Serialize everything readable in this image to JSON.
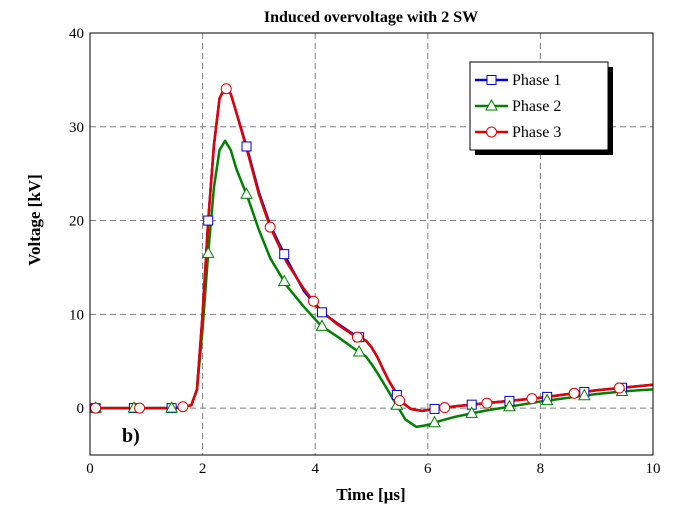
{
  "chart_data": {
    "type": "line",
    "title": "Induced overvoltage with 2 SW",
    "xlabel": "Time [µs]",
    "ylabel": "Voltage [kV]",
    "xlim": [
      0,
      10
    ],
    "ylim": [
      -5,
      40
    ],
    "xticks": [
      0,
      2,
      4,
      6,
      8,
      10
    ],
    "yticks": [
      0,
      10,
      20,
      30,
      40
    ],
    "grid": true,
    "legend_position": "top-right",
    "annotation": "b)",
    "series": [
      {
        "name": "Phase 1",
        "color": "#0000d0",
        "marker": "square",
        "x": [
          0,
          0.5,
          1.0,
          1.5,
          1.8,
          1.9,
          2.0,
          2.1,
          2.2,
          2.3,
          2.4,
          2.5,
          2.6,
          2.8,
          3.0,
          3.2,
          3.5,
          3.8,
          4.1,
          4.4,
          4.7,
          4.9,
          5.0,
          5.1,
          5.2,
          5.3,
          5.4,
          5.5,
          5.7,
          5.9,
          6.1,
          6.5,
          7.0,
          7.5,
          8.0,
          8.5,
          9.0,
          9.5,
          10.0
        ],
        "y": [
          0,
          0,
          0,
          0,
          0.3,
          2,
          10,
          20,
          28,
          33,
          34.3,
          33.5,
          31.5,
          27.5,
          23,
          19.5,
          15.8,
          12.5,
          10.3,
          9,
          7.8,
          7.2,
          6.5,
          5.5,
          4.2,
          3,
          2,
          0.8,
          -0.1,
          -0.3,
          -0.1,
          0.2,
          0.5,
          0.8,
          1.1,
          1.5,
          1.9,
          2.2,
          2.5
        ],
        "marker_x": [
          0.1,
          0.78,
          1.45,
          2.1,
          2.78,
          3.45,
          4.12,
          4.78,
          5.45,
          6.12,
          6.78,
          7.45,
          8.12,
          8.78,
          9.45
        ]
      },
      {
        "name": "Phase 2",
        "color": "#008000",
        "marker": "triangle",
        "x": [
          0,
          0.5,
          1.0,
          1.5,
          1.8,
          1.9,
          2.0,
          2.1,
          2.2,
          2.3,
          2.4,
          2.5,
          2.6,
          2.8,
          3.0,
          3.2,
          3.5,
          3.8,
          4.1,
          4.4,
          4.7,
          4.9,
          5.0,
          5.1,
          5.2,
          5.3,
          5.4,
          5.5,
          5.6,
          5.8,
          6.0,
          6.2,
          6.5,
          7.0,
          7.5,
          8.0,
          8.5,
          9.0,
          9.5,
          10.0
        ],
        "y": [
          0,
          0,
          0,
          0,
          0.3,
          2,
          8.5,
          16.5,
          23.5,
          27.5,
          28.5,
          27.5,
          25.5,
          22.5,
          19,
          16,
          13,
          10.8,
          8.8,
          7.6,
          6.3,
          5.5,
          4.7,
          3.8,
          2.8,
          1.8,
          0.8,
          -0.2,
          -1.2,
          -2,
          -1.8,
          -1.4,
          -0.9,
          -0.3,
          0.2,
          0.7,
          1.1,
          1.5,
          1.8,
          2.0
        ],
        "marker_x": [
          0.1,
          0.78,
          1.45,
          2.1,
          2.78,
          3.45,
          4.12,
          4.78,
          5.45,
          6.12,
          6.78,
          7.45,
          8.12,
          8.78,
          9.45
        ]
      },
      {
        "name": "Phase 3",
        "color": "#e00000",
        "marker": "circle",
        "x": [
          0,
          0.5,
          1.0,
          1.5,
          1.8,
          1.9,
          2.0,
          2.1,
          2.2,
          2.3,
          2.4,
          2.5,
          2.6,
          2.8,
          3.0,
          3.2,
          3.5,
          3.8,
          4.1,
          4.4,
          4.7,
          4.9,
          5.0,
          5.1,
          5.2,
          5.3,
          5.4,
          5.5,
          5.7,
          5.9,
          6.1,
          6.5,
          7.0,
          7.5,
          8.0,
          8.5,
          9.0,
          9.5,
          10.0
        ],
        "y": [
          0,
          0,
          0,
          0,
          0.3,
          2,
          10,
          20,
          28,
          33,
          34.2,
          33.5,
          31.5,
          27.3,
          22.8,
          19.3,
          15.5,
          12.7,
          10.4,
          8.9,
          7.7,
          7.2,
          6.5,
          5.5,
          4.2,
          3,
          2,
          0.8,
          -0.1,
          -0.3,
          -0.1,
          0.2,
          0.5,
          0.8,
          1.1,
          1.5,
          1.9,
          2.2,
          2.5
        ],
        "marker_x": [
          0.1,
          0.88,
          1.65,
          2.42,
          3.2,
          3.97,
          4.75,
          5.5,
          6.3,
          7.05,
          7.85,
          8.6,
          9.4
        ]
      }
    ]
  }
}
